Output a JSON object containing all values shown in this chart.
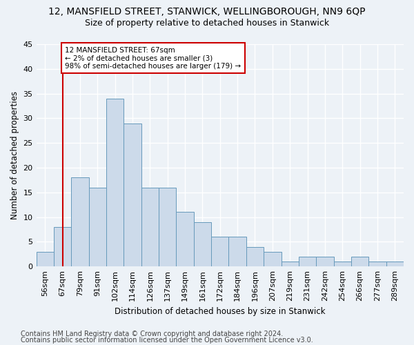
{
  "title_line1": "12, MANSFIELD STREET, STANWICK, WELLINGBOROUGH, NN9 6QP",
  "title_line2": "Size of property relative to detached houses in Stanwick",
  "xlabel": "Distribution of detached houses by size in Stanwick",
  "ylabel": "Number of detached properties",
  "categories": [
    "56sqm",
    "67sqm",
    "79sqm",
    "91sqm",
    "102sqm",
    "114sqm",
    "126sqm",
    "137sqm",
    "149sqm",
    "161sqm",
    "172sqm",
    "184sqm",
    "196sqm",
    "207sqm",
    "219sqm",
    "231sqm",
    "242sqm",
    "254sqm",
    "266sqm",
    "277sqm",
    "289sqm"
  ],
  "values": [
    3,
    8,
    18,
    16,
    34,
    29,
    16,
    16,
    11,
    9,
    6,
    6,
    4,
    3,
    1,
    2,
    2,
    1,
    2,
    1,
    1
  ],
  "bar_color": "#ccdaea",
  "bar_edge_color": "#6699bb",
  "marker_index": 1,
  "marker_line_color": "#cc0000",
  "annotation_line1": "12 MANSFIELD STREET: 67sqm",
  "annotation_line2": "← 2% of detached houses are smaller (3)",
  "annotation_line3": "98% of semi-detached houses are larger (179) →",
  "annotation_box_color": "#ffffff",
  "annotation_box_edge": "#cc0000",
  "ylim": [
    0,
    45
  ],
  "yticks": [
    0,
    5,
    10,
    15,
    20,
    25,
    30,
    35,
    40,
    45
  ],
  "footer_line1": "Contains HM Land Registry data © Crown copyright and database right 2024.",
  "footer_line2": "Contains public sector information licensed under the Open Government Licence v3.0.",
  "background_color": "#edf2f7",
  "plot_background": "#edf2f7",
  "grid_color": "#ffffff",
  "title1_fontsize": 10,
  "title2_fontsize": 9,
  "axis_label_fontsize": 8.5,
  "tick_fontsize": 8,
  "footer_fontsize": 7
}
